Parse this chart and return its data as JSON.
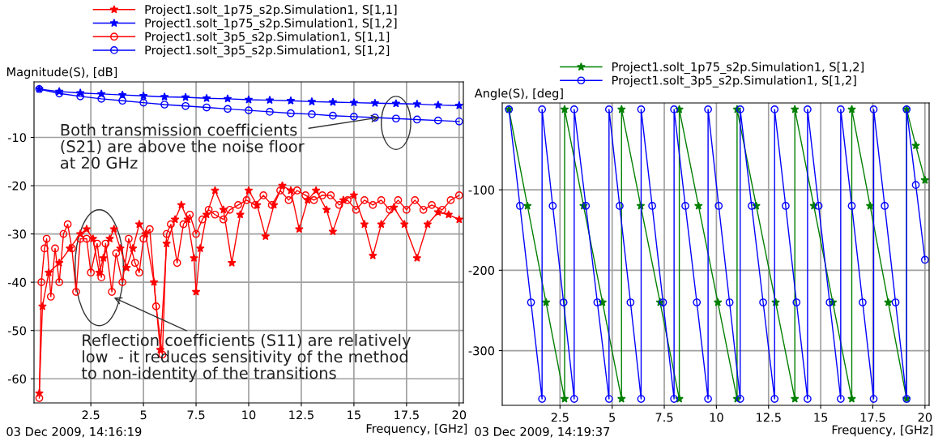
{
  "chart_data": [
    {
      "type": "line",
      "ylabel": "Magnitude(S), [dB]",
      "xlabel": "Frequency, [GHz]",
      "xlim": [
        -0.2,
        20.2
      ],
      "ylim": [
        -65,
        1.5
      ],
      "xticks": [
        2.5,
        5,
        7.5,
        10,
        12.5,
        15,
        17.5,
        20
      ],
      "yticks": [
        -10,
        -20,
        -30,
        -40,
        -50,
        -60
      ],
      "grid": true,
      "legend": "top",
      "series": [
        {
          "name": "Project1.solt_1p75_s2p.Simulation1, S[1,1]",
          "color": "#ff0000",
          "marker": "star",
          "x": [
            0.05,
            0.2,
            0.5,
            1.0,
            1.5,
            2.0,
            2.3,
            2.6,
            2.9,
            3.1,
            3.4,
            3.6,
            3.9,
            4.2,
            4.5,
            4.8,
            5.1,
            5.5,
            5.8,
            6.1,
            6.5,
            6.8,
            7.1,
            7.4,
            7.5,
            7.7,
            8.0,
            8.4,
            8.8,
            9.2,
            9.6,
            10.0,
            10.4,
            10.8,
            11.2,
            11.6,
            12.0,
            12.4,
            12.8,
            13.2,
            13.7,
            14.0,
            14.5,
            15.0,
            15.5,
            15.9,
            16.3,
            16.9,
            17.4,
            18.0,
            18.5,
            19.0,
            19.5,
            20.0
          ],
          "values": [
            -63,
            -45,
            -38,
            -36,
            -33,
            -30,
            -29,
            -31,
            -38,
            -35,
            -31,
            -29,
            -33,
            -37,
            -33,
            -28,
            -30,
            -40,
            -54,
            -32,
            -27,
            -24,
            -27,
            -35,
            -42,
            -33,
            -26,
            -21,
            -25,
            -36,
            -26,
            -21,
            -24,
            -30.5,
            -24,
            -20,
            -21,
            -29,
            -23,
            -21,
            -25,
            -29.5,
            -23,
            -22,
            -28,
            -34.5,
            -28,
            -24.5,
            -28,
            -35,
            -28,
            -25.5,
            -26,
            -27
          ]
        },
        {
          "name": "Project1.solt_1p75_s2p.Simulation1, S[1,2]",
          "color": "#0000ff",
          "marker": "star",
          "x": [
            0.05,
            1,
            2,
            3,
            4,
            5,
            6,
            7,
            8,
            9,
            10,
            11,
            12,
            13,
            14,
            15,
            16,
            17,
            18,
            19,
            20
          ],
          "values": [
            0,
            -0.5,
            -0.8,
            -1.0,
            -1.2,
            -1.4,
            -1.6,
            -1.7,
            -1.9,
            -2.0,
            -2.2,
            -2.3,
            -2.4,
            -2.6,
            -2.7,
            -2.8,
            -2.9,
            -3.0,
            -3.1,
            -3.3,
            -3.4
          ]
        },
        {
          "name": "Project1.solt_3p5_s2p.Simulation1, S[1,1]",
          "color": "#ff0000",
          "marker": "circle",
          "x": [
            0.05,
            0.15,
            0.3,
            0.4,
            0.6,
            0.8,
            1.0,
            1.2,
            1.4,
            1.6,
            1.8,
            2.0,
            2.3,
            2.5,
            2.8,
            3.0,
            3.2,
            3.5,
            3.7,
            4.0,
            4.3,
            4.6,
            4.8,
            5.0,
            5.3,
            5.6,
            5.9,
            6.1,
            6.3,
            6.6,
            6.9,
            7.2,
            7.5,
            7.8,
            8.1,
            8.4,
            8.8,
            9.1,
            9.5,
            9.9,
            10.3,
            10.7,
            11.1,
            11.5,
            11.9,
            12.3,
            12.7,
            13.1,
            13.5,
            13.9,
            14.3,
            14.7,
            15.1,
            15.5,
            15.9,
            16.3,
            16.7,
            17.1,
            17.5,
            17.9,
            18.3,
            18.7,
            19.2,
            19.6,
            20.0
          ],
          "values": [
            -64,
            -40,
            -33,
            -31,
            -43,
            -33,
            -40,
            -30,
            -28,
            -33,
            -42,
            -31,
            -31,
            -38,
            -32,
            -39,
            -32,
            -42,
            -34,
            -40,
            -31,
            -36,
            -38,
            -31,
            -29,
            -45,
            -55,
            -30,
            -28,
            -36,
            -28,
            -26,
            -30,
            -27,
            -25,
            -26,
            -27,
            -25,
            -24,
            -23,
            -24,
            -22,
            -24,
            -21,
            -23,
            -21,
            -22,
            -23,
            -22,
            -22,
            -24,
            -23,
            -25,
            -23,
            -24,
            -23,
            -25,
            -23,
            -25,
            -23,
            -25,
            -24,
            -25,
            -23,
            -22
          ]
        },
        {
          "name": "Project1.solt_3p5_s2p.Simulation1, S[1,2]",
          "color": "#0000ff",
          "marker": "circle",
          "x": [
            0.05,
            1,
            2,
            3,
            4,
            5,
            6,
            7,
            8,
            9,
            10,
            11,
            12,
            13,
            14,
            15,
            16,
            17,
            18,
            19,
            20
          ],
          "values": [
            0,
            -0.9,
            -1.5,
            -2.0,
            -2.4,
            -2.8,
            -3.2,
            -3.5,
            -3.8,
            -4.1,
            -4.4,
            -4.7,
            -5.0,
            -5.2,
            -5.5,
            -5.7,
            -5.9,
            -6.1,
            -6.3,
            -6.5,
            -6.7
          ]
        }
      ],
      "annotations": [
        {
          "text": "Both transmission coefficients\n(S21) are above the noise floor\nat 20 GHz",
          "x": 16.3,
          "y": -5.8
        },
        {
          "text": "Reflection coefficients (S11) are relatively\nlow  - it reduces sensitivity of the method\nto non-identity of the transitions",
          "x": 3.5,
          "y": -43
        },
        "03 Dec 2009, 14:16:19"
      ]
    },
    {
      "type": "line",
      "ylabel": "Angle(S), [deg]",
      "xlabel": "Frequency, [GHz]",
      "xlim": [
        -0.27,
        20.2
      ],
      "ylim": [
        -368,
        8
      ],
      "xticks": [
        2.5,
        5,
        7.5,
        10,
        12.5,
        15,
        17.5,
        20
      ],
      "yticks": [
        -100,
        -200,
        -300
      ],
      "grid": true,
      "legend": "top",
      "series": [
        {
          "name": "Project1.solt_1p75_s2p.Simulation1, S[1,2]",
          "color": "#008000",
          "marker": "star",
          "x": [
            0.05,
            0.94,
            1.83,
            2.72,
            2.72,
            3.63,
            4.54,
            5.45,
            5.45,
            6.37,
            7.3,
            8.22,
            8.22,
            9.14,
            10.07,
            10.99,
            10.99,
            11.91,
            12.84,
            13.76,
            13.76,
            14.67,
            15.58,
            16.49,
            16.49,
            17.37,
            18.24,
            19.12,
            19.12,
            19.56,
            20.0
          ],
          "values": [
            0,
            -120,
            -240,
            -360,
            0,
            -120,
            -240,
            -360,
            0,
            -120,
            -240,
            -360,
            0,
            -120,
            -240,
            -360,
            0,
            -120,
            -240,
            -360,
            0,
            -120,
            -240,
            -360,
            0,
            -120,
            -240,
            -360,
            0,
            -45,
            -88
          ]
        },
        {
          "name": "Project1.solt_3p5_s2p.Simulation1, S[1,2]",
          "color": "#0000ff",
          "marker": "circle",
          "x": [
            0.05,
            0.58,
            1.11,
            1.64,
            1.64,
            2.15,
            2.67,
            3.18,
            3.18,
            3.74,
            4.29,
            4.85,
            4.85,
            5.36,
            5.88,
            6.39,
            6.39,
            6.92,
            7.44,
            7.97,
            7.97,
            8.51,
            9.06,
            9.6,
            9.6,
            10.11,
            10.63,
            11.14,
            11.14,
            11.69,
            12.24,
            12.79,
            12.79,
            13.32,
            13.84,
            14.37,
            14.37,
            14.9,
            15.43,
            15.96,
            15.96,
            16.49,
            17.01,
            17.54,
            17.54,
            18.07,
            18.59,
            19.12,
            19.12,
            19.56,
            20.0
          ],
          "values": [
            0,
            -120,
            -240,
            -360,
            0,
            -120,
            -240,
            -360,
            0,
            -120,
            -240,
            -360,
            0,
            -120,
            -240,
            -360,
            0,
            -120,
            -240,
            -360,
            0,
            -120,
            -240,
            -360,
            0,
            -120,
            -240,
            -360,
            0,
            -120,
            -240,
            -360,
            0,
            -120,
            -240,
            -360,
            0,
            -120,
            -240,
            -360,
            0,
            -120,
            -240,
            -360,
            0,
            -120,
            -240,
            -360,
            0,
            -94,
            -187
          ]
        }
      ],
      "annotations": [
        "03 Dec 2009, 14:19:37"
      ]
    }
  ]
}
